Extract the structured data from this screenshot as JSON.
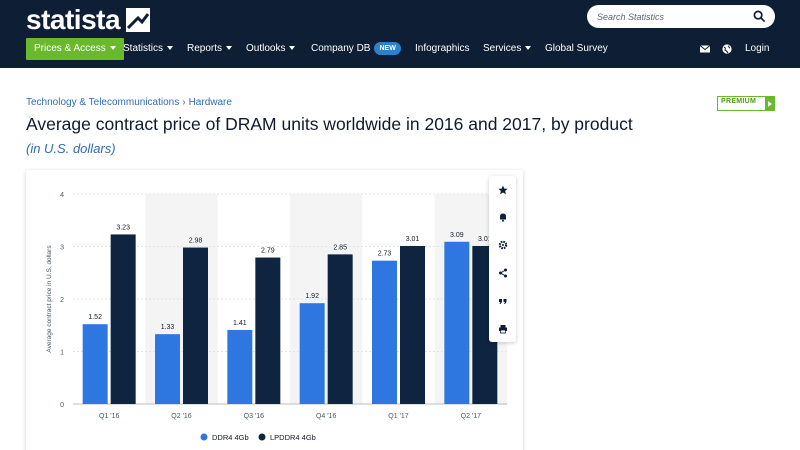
{
  "header": {
    "logo_text": "statista",
    "search": {
      "placeholder": "Search Statistics"
    },
    "nav": {
      "prices_access": "Prices & Access",
      "statistics": "Statistics",
      "reports": "Reports",
      "outlooks": "Outlooks",
      "company_db": "Company DB",
      "new_badge": "NEW",
      "infographics": "Infographics",
      "services": "Services",
      "global_survey": "Global Survey",
      "login": "Login"
    }
  },
  "breadcrumb": {
    "category": "Technology & Telecommunications",
    "separator": "›",
    "subcategory": "Hardware"
  },
  "premium_label": "PREMIUM",
  "page": {
    "title": "Average contract price of DRAM units worldwide in 2016 and 2017, by product",
    "subtitle": "(in U.S. dollars)"
  },
  "colors": {
    "ddr4": "#2f77e0",
    "lpddr4": "#0f2440",
    "accent_green": "#6ab82c",
    "header_bg": "#0d1e35",
    "link_blue": "#2e6db4"
  },
  "actions": [
    "star-icon",
    "bell-icon",
    "gear-icon",
    "share-icon",
    "quote-icon",
    "print-icon"
  ],
  "chart_data": {
    "type": "bar",
    "title": "",
    "xlabel": "",
    "ylabel": "Average contract price in U.S. dollars",
    "ylim": [
      0,
      4
    ],
    "yticks": [
      0,
      1,
      2,
      3,
      4
    ],
    "categories": [
      "Q1 '16",
      "Q2 '16",
      "Q3 '16",
      "Q4 '16",
      "Q1 '17",
      "Q2 '17"
    ],
    "series": [
      {
        "name": "DDR4 4Gb",
        "values": [
          1.52,
          1.33,
          1.41,
          1.92,
          2.73,
          3.09
        ],
        "color": "#2f77e0"
      },
      {
        "name": "LPDDR4 4Gb",
        "values": [
          3.23,
          2.98,
          2.79,
          2.85,
          3.01,
          3.01
        ],
        "color": "#0f2440"
      }
    ],
    "grid": true,
    "legend": "bottom"
  }
}
